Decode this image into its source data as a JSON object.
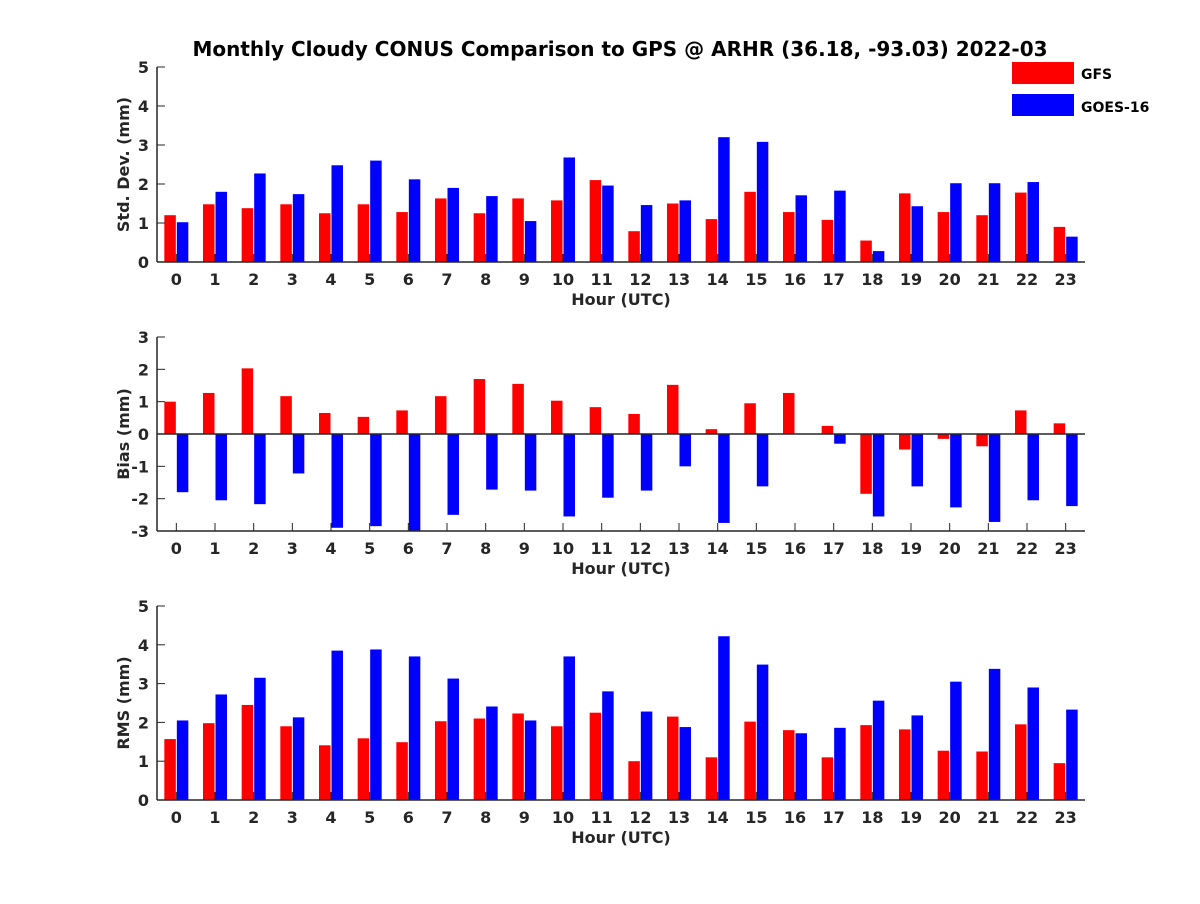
{
  "title": "Monthly Cloudy CONUS Comparison to GPS @ ARHR (36.18, -93.03) 2022-03",
  "legend": [
    {
      "name": "GFS",
      "color": "#ff0000"
    },
    {
      "name": "GOES-16",
      "color": "#0000ff"
    }
  ],
  "chart_data": [
    {
      "type": "bar",
      "xlabel": "Hour (UTC)",
      "ylabel": "Std. Dev. (mm)",
      "ylim": [
        0,
        5
      ],
      "yticks": [
        0,
        1,
        2,
        3,
        4,
        5
      ],
      "categories": [
        "0",
        "1",
        "2",
        "3",
        "4",
        "5",
        "6",
        "7",
        "8",
        "9",
        "10",
        "11",
        "12",
        "13",
        "14",
        "15",
        "16",
        "17",
        "18",
        "19",
        "20",
        "21",
        "22",
        "23"
      ],
      "series": [
        {
          "name": "GFS",
          "values": [
            1.2,
            1.48,
            1.38,
            1.48,
            1.25,
            1.48,
            1.28,
            1.63,
            1.25,
            1.63,
            1.58,
            2.1,
            0.79,
            1.5,
            1.1,
            1.8,
            1.28,
            1.08,
            0.55,
            1.76,
            1.28,
            1.2,
            1.78,
            0.9
          ]
        },
        {
          "name": "GOES-16",
          "values": [
            1.02,
            1.8,
            2.27,
            1.74,
            2.48,
            2.6,
            2.12,
            1.9,
            1.69,
            1.05,
            2.68,
            1.96,
            1.46,
            1.58,
            3.2,
            3.08,
            1.71,
            1.83,
            0.28,
            1.43,
            2.02,
            2.02,
            2.05,
            0.65
          ]
        }
      ]
    },
    {
      "type": "bar",
      "xlabel": "Hour (UTC)",
      "ylabel": "Bias (mm)",
      "ylim": [
        -3,
        3
      ],
      "yticks": [
        -3,
        -2,
        -1,
        0,
        1,
        2,
        3
      ],
      "categories": [
        "0",
        "1",
        "2",
        "3",
        "4",
        "5",
        "6",
        "7",
        "8",
        "9",
        "10",
        "11",
        "12",
        "13",
        "14",
        "15",
        "16",
        "17",
        "18",
        "19",
        "20",
        "21",
        "22",
        "23"
      ],
      "series": [
        {
          "name": "GFS",
          "values": [
            1.0,
            1.27,
            2.03,
            1.17,
            0.65,
            0.53,
            0.73,
            1.17,
            1.7,
            1.55,
            1.03,
            0.83,
            0.62,
            1.52,
            0.15,
            0.95,
            1.27,
            0.25,
            -1.85,
            -0.48,
            -0.15,
            -0.38,
            0.73,
            0.33
          ]
        },
        {
          "name": "GOES-16",
          "values": [
            -1.8,
            -2.05,
            -2.17,
            -1.22,
            -2.9,
            -2.85,
            -3.0,
            -2.5,
            -1.72,
            -1.75,
            -2.55,
            -1.97,
            -1.75,
            -1.0,
            -2.75,
            -1.62,
            0,
            -0.3,
            -2.55,
            -1.62,
            -2.27,
            -2.72,
            -2.05,
            -2.23
          ]
        }
      ]
    },
    {
      "type": "bar",
      "xlabel": "Hour (UTC)",
      "ylabel": "RMS (mm)",
      "ylim": [
        0,
        5
      ],
      "yticks": [
        0,
        1,
        2,
        3,
        4,
        5
      ],
      "categories": [
        "0",
        "1",
        "2",
        "3",
        "4",
        "5",
        "6",
        "7",
        "8",
        "9",
        "10",
        "11",
        "12",
        "13",
        "14",
        "15",
        "16",
        "17",
        "18",
        "19",
        "20",
        "21",
        "22",
        "23"
      ],
      "series": [
        {
          "name": "GFS",
          "values": [
            1.57,
            1.98,
            2.45,
            1.9,
            1.41,
            1.59,
            1.49,
            2.03,
            2.1,
            2.23,
            1.9,
            2.25,
            1.0,
            2.15,
            1.1,
            2.02,
            1.8,
            1.1,
            1.93,
            1.82,
            1.27,
            1.25,
            1.95,
            0.95
          ]
        },
        {
          "name": "GOES-16",
          "values": [
            2.05,
            2.72,
            3.15,
            2.13,
            3.85,
            3.88,
            3.7,
            3.13,
            2.41,
            2.05,
            3.7,
            2.8,
            2.28,
            1.88,
            4.22,
            3.49,
            1.72,
            1.86,
            2.56,
            2.18,
            3.05,
            3.38,
            2.9,
            2.33
          ]
        }
      ]
    }
  ]
}
